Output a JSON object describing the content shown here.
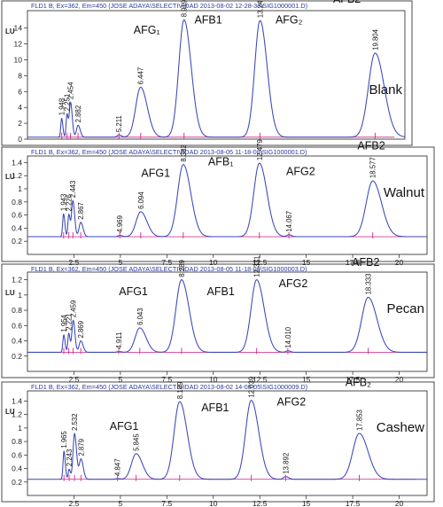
{
  "chart_data": [
    {
      "type": "line",
      "header": "FLD1 B, Ex=362, Em=450 (JOSE ADAYA\\SELECTIVIDAD 2013-08-02 12-28-33\\SIG1000001.D)",
      "ylabel": "LU",
      "sample_label": "Blank",
      "xlim": [
        0,
        21.5
      ],
      "ylim": [
        0,
        16.2
      ],
      "y_ticks": [
        0,
        2,
        4,
        6,
        8,
        10,
        12,
        14
      ],
      "x_ticks": [],
      "baseline": 0.25,
      "peaks": [
        {
          "rt": 1.948,
          "height": 2.4,
          "width": 0.05,
          "label": "1.948"
        },
        {
          "rt": 2.251,
          "height": 2.9,
          "width": 0.05,
          "label": "2.251"
        },
        {
          "rt": 2.454,
          "height": 4.4,
          "width": 0.07,
          "label": "2.454"
        },
        {
          "rt": 2.882,
          "height": 1.5,
          "width": 0.09,
          "label": "2.882"
        },
        {
          "rt": 5.211,
          "height": 0.3,
          "width": 0.1,
          "label": "5.211"
        },
        {
          "rt": 6.447,
          "height": 6.3,
          "width": 0.28,
          "label": "6.447"
        },
        {
          "rt": 8.919,
          "height": 14.8,
          "width": 0.3,
          "label": "8.919"
        },
        {
          "rt": 13.247,
          "height": 14.7,
          "width": 0.3,
          "label": "13.247"
        },
        {
          "rt": 19.804,
          "height": 10.6,
          "width": 0.38,
          "label": "19.804"
        }
      ],
      "annotations": [
        {
          "text": "AFG₁",
          "x": 6.8,
          "y": 13.3
        },
        {
          "text": "AFB1",
          "x": 10.3,
          "y": 14.6
        },
        {
          "text": "AFG₂",
          "x": 14.9,
          "y": 14.6
        },
        {
          "text": "AFB2",
          "x": 18.2,
          "y": 17.2
        }
      ]
    },
    {
      "type": "line",
      "header": "FLD1 B, Ex=362, Em=450 (JOSE ADAYA\\SELECTIVIDAD 2013-08-05 11-18-08\\SIG1000001.D)",
      "ylabel": "LU",
      "sample_label": "Walnut",
      "xlim": [
        0,
        21.5
      ],
      "ylim": [
        0,
        1.5
      ],
      "y_ticks": [
        0.2,
        0.4,
        0.6,
        0.8,
        1,
        1.2,
        1.4
      ],
      "x_ticks": [
        2.5,
        5,
        7.5,
        10,
        12.5,
        15,
        17.5,
        20
      ],
      "baseline": 0.27,
      "peaks": [
        {
          "rt": 1.943,
          "height": 0.35,
          "width": 0.05,
          "label": "1.943"
        },
        {
          "rt": 2.226,
          "height": 0.34,
          "width": 0.05,
          "label": "2.226"
        },
        {
          "rt": 2.443,
          "height": 0.55,
          "width": 0.07,
          "label": "2.443"
        },
        {
          "rt": 2.867,
          "height": 0.22,
          "width": 0.09,
          "label": "2.867"
        },
        {
          "rt": 4.969,
          "height": 0.02,
          "width": 0.1,
          "label": "4.969"
        },
        {
          "rt": 6.094,
          "height": 0.38,
          "width": 0.25,
          "label": "6.094"
        },
        {
          "rt": 8.382,
          "height": 1.1,
          "width": 0.3,
          "label": "8.382"
        },
        {
          "rt": 12.479,
          "height": 1.12,
          "width": 0.3,
          "label": "12.479"
        },
        {
          "rt": 14.067,
          "height": 0.03,
          "width": 0.1,
          "label": "14.067"
        },
        {
          "rt": 18.577,
          "height": 0.85,
          "width": 0.35,
          "label": "18.577"
        }
      ],
      "annotations": [
        {
          "text": "AFG1",
          "x": 6.9,
          "y": 1.18
        },
        {
          "text": "AFB₁",
          "x": 10.4,
          "y": 1.36
        },
        {
          "text": "AFG2",
          "x": 14.7,
          "y": 1.21
        },
        {
          "text": "AFB2",
          "x": 18.5,
          "y": 1.6
        }
      ]
    },
    {
      "type": "line",
      "header": "FLD1 B, Ex=362, Em=450 (JOSE ADAYA\\SELECTIVIDAD 2013-08-05 11-18-08\\SIG1000003.D)",
      "ylabel": "LU",
      "sample_label": "Pecan",
      "xlim": [
        0,
        21.5
      ],
      "ylim": [
        0,
        1.3
      ],
      "y_ticks": [
        0.2,
        0.4,
        0.6,
        0.8,
        1,
        1.2
      ],
      "x_ticks": [
        2.5,
        5,
        7.5,
        10,
        12.5,
        15,
        17.5,
        20
      ],
      "baseline": 0.25,
      "peaks": [
        {
          "rt": 1.954,
          "height": 0.23,
          "width": 0.05,
          "label": "1.954"
        },
        {
          "rt": 2.221,
          "height": 0.25,
          "width": 0.05,
          "label": "2.221"
        },
        {
          "rt": 2.459,
          "height": 0.42,
          "width": 0.07,
          "label": "2.459"
        },
        {
          "rt": 2.869,
          "height": 0.15,
          "width": 0.09,
          "label": "2.869"
        },
        {
          "rt": 4.911,
          "height": 0.01,
          "width": 0.1,
          "label": "4.911"
        },
        {
          "rt": 6.043,
          "height": 0.32,
          "width": 0.25,
          "label": "6.043"
        },
        {
          "rt": 8.289,
          "height": 0.95,
          "width": 0.3,
          "label": "8.289"
        },
        {
          "rt": 12.331,
          "height": 0.95,
          "width": 0.3,
          "label": "12.331"
        },
        {
          "rt": 14.01,
          "height": 0.02,
          "width": 0.1,
          "label": "14.010"
        },
        {
          "rt": 18.333,
          "height": 0.72,
          "width": 0.35,
          "label": "18.333"
        }
      ],
      "annotations": [
        {
          "text": "AFG1",
          "x": 5.7,
          "y": 1.0
        },
        {
          "text": "AFB1",
          "x": 10.4,
          "y": 1.0
        },
        {
          "text": "AFG2",
          "x": 14.3,
          "y": 1.1
        },
        {
          "text": "AFB2",
          "x": 18.2,
          "y": 1.38
        }
      ]
    },
    {
      "type": "line",
      "header": "FLD1 B, Ex=362, Em=450 (JOSE ADAYA\\SELECTIVIDAD 2013-08-02 14-08-05\\SIG1000009.D)",
      "ylabel": "LU",
      "sample_label": "Cashew",
      "xlim": [
        0,
        21.5
      ],
      "ylim": [
        0,
        1.55
      ],
      "y_ticks": [
        0.2,
        0.4,
        0.6,
        0.8,
        1,
        1.2,
        1.4
      ],
      "x_ticks": [
        2.5,
        5,
        7.5,
        10,
        12.5,
        15,
        17.5,
        20
      ],
      "baseline": 0.24,
      "peaks": [
        {
          "rt": 1.965,
          "height": 0.42,
          "width": 0.05,
          "label": "1.965"
        },
        {
          "rt": 2.243,
          "height": 0.15,
          "width": 0.05,
          "label": "2.243"
        },
        {
          "rt": 2.532,
          "height": 0.68,
          "width": 0.08,
          "label": "2.532"
        },
        {
          "rt": 2.879,
          "height": 0.3,
          "width": 0.09,
          "label": "2.879"
        },
        {
          "rt": 4.847,
          "height": 0.01,
          "width": 0.1,
          "label": "4.847"
        },
        {
          "rt": 5.845,
          "height": 0.38,
          "width": 0.25,
          "label": "5.845"
        },
        {
          "rt": 8.189,
          "height": 1.15,
          "width": 0.3,
          "label": "8.189"
        },
        {
          "rt": 12.039,
          "height": 1.17,
          "width": 0.3,
          "label": "12.039"
        },
        {
          "rt": 13.892,
          "height": 0.04,
          "width": 0.12,
          "label": "13.892"
        },
        {
          "rt": 17.853,
          "height": 0.68,
          "width": 0.35,
          "label": "17.853"
        }
      ],
      "annotations": [
        {
          "text": "AFG1",
          "x": 5.2,
          "y": 0.97
        },
        {
          "text": "AFB1",
          "x": 10.1,
          "y": 1.25
        },
        {
          "text": "AFG2",
          "x": 14.2,
          "y": 1.33
        },
        {
          "text": "AFB₂",
          "x": 17.8,
          "y": 1.62
        }
      ]
    }
  ]
}
